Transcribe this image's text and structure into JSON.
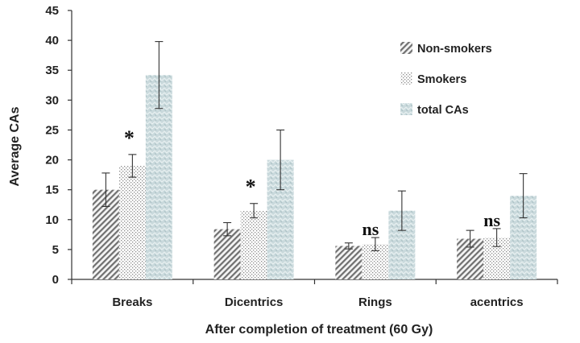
{
  "chart_data": {
    "type": "bar",
    "xlabel": "After completion of  treatment (60 Gy)",
    "ylabel": "Average CAs",
    "ylim": [
      0,
      45
    ],
    "yticks": [
      0,
      5,
      10,
      15,
      20,
      25,
      30,
      35,
      40,
      45
    ],
    "categories": [
      "Breaks",
      "Dicentrics",
      "Rings",
      "acentrics"
    ],
    "series": [
      {
        "name": "Non-smokers",
        "pattern": "diagonal",
        "color": "#888888",
        "values": [
          15.0,
          8.4,
          5.6,
          6.8
        ],
        "errors": [
          2.8,
          1.1,
          0.5,
          1.4
        ]
      },
      {
        "name": "Smokers",
        "pattern": "dots",
        "color": "#aaaaaa",
        "values": [
          19.0,
          11.5,
          5.9,
          7.0
        ],
        "errors": [
          1.9,
          1.2,
          1.1,
          1.5
        ]
      },
      {
        "name": "total CAs",
        "pattern": "zigzag",
        "color": "#b5c9cc",
        "values": [
          34.2,
          20.0,
          11.5,
          14.0
        ],
        "errors": [
          5.6,
          5.0,
          3.3,
          3.7
        ]
      }
    ],
    "annotations": [
      {
        "category": "Breaks",
        "text": "*"
      },
      {
        "category": "Dicentrics",
        "text": "*"
      },
      {
        "category": "Rings",
        "text": "ns"
      },
      {
        "category": "acentrics",
        "text": "ns"
      }
    ],
    "legend_position": "top-right",
    "grid": false
  }
}
